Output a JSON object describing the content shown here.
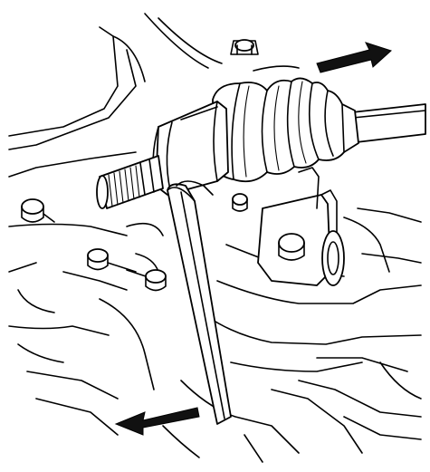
{
  "figure": {
    "kind": "technical-line-illustration",
    "colors": {
      "line": "#000000",
      "background": "#ffffff"
    },
    "parts": [
      "axle-shaft",
      "cv-boot",
      "joint-housing",
      "splined-shaft",
      "pry-bar",
      "bracket",
      "mounting-bolts",
      "motion-arrows"
    ],
    "arrows": [
      {
        "name": "pull-direction",
        "icon": "arrow-right-icon"
      },
      {
        "name": "pry-direction",
        "icon": "arrow-left-icon"
      }
    ]
  }
}
